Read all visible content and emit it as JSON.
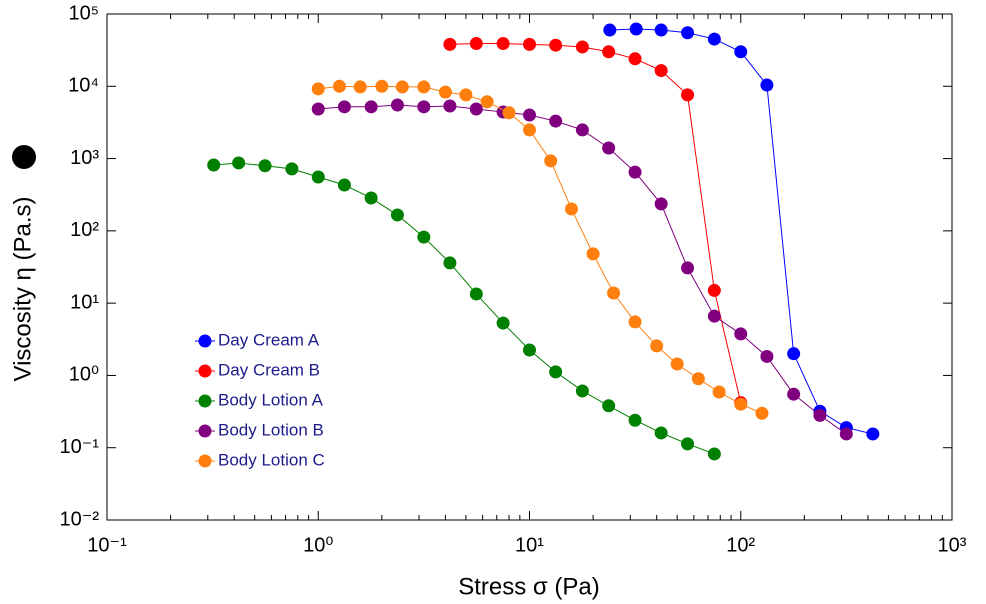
{
  "chart_data": {
    "type": "line",
    "x_label": "Stress σ (Pa)",
    "y_label": "Viscosity η (Pa.s)",
    "xscale": "log",
    "yscale": "log",
    "xlim": [
      0.1,
      1000
    ],
    "ylim": [
      0.01,
      100000
    ],
    "xticks": [
      {
        "value": 0.1,
        "label": "10⁻¹"
      },
      {
        "value": 1,
        "label": "10⁰"
      },
      {
        "value": 10,
        "label": "10¹"
      },
      {
        "value": 100,
        "label": "10²"
      },
      {
        "value": 1000,
        "label": "10³"
      }
    ],
    "yticks": [
      {
        "value": 0.01,
        "label": "10⁻²"
      },
      {
        "value": 0.1,
        "label": "10⁻¹"
      },
      {
        "value": 1,
        "label": "10⁰"
      },
      {
        "value": 10,
        "label": "10¹"
      },
      {
        "value": 100,
        "label": "10²"
      },
      {
        "value": 1000,
        "label": "10³"
      },
      {
        "value": 10000,
        "label": "10⁴"
      },
      {
        "value": 100000,
        "label": "10⁵"
      }
    ],
    "x_minor_ticks": true,
    "grid": false,
    "legend_loc": "center left",
    "series": [
      {
        "name": "Day Cream A",
        "color": "#0000ff",
        "x": [
          24,
          32,
          42,
          56,
          75,
          100,
          133,
          178,
          237,
          316,
          422
        ],
        "values": [
          60000,
          62000,
          60000,
          55000,
          45000,
          30000,
          10400,
          2.0,
          0.32,
          0.19,
          0.155
        ]
      },
      {
        "name": "Day Cream B",
        "color": "#ff0000",
        "x": [
          4.2,
          5.6,
          7.5,
          10,
          13.3,
          17.8,
          23.7,
          31.6,
          42,
          56,
          75,
          100
        ],
        "values": [
          38000,
          39000,
          39000,
          38000,
          37000,
          35000,
          30000,
          24000,
          16500,
          7600,
          15,
          0.42
        ]
      },
      {
        "name": "Body Lotion A",
        "color": "#008000",
        "x": [
          0.32,
          0.42,
          0.56,
          0.75,
          1,
          1.33,
          1.78,
          2.37,
          3.16,
          4.2,
          5.6,
          7.5,
          10,
          13.3,
          17.8,
          23.7,
          31.6,
          42,
          56,
          75
        ],
        "values": [
          815,
          870,
          795,
          720,
          556,
          431,
          285,
          166,
          82,
          36,
          13.4,
          5.3,
          2.25,
          1.12,
          0.61,
          0.38,
          0.24,
          0.16,
          0.113,
          0.082
        ]
      },
      {
        "name": "Body Lotion B",
        "color": "#800080",
        "x": [
          1,
          1.33,
          1.78,
          2.37,
          3.16,
          4.2,
          5.6,
          7.5,
          10,
          13.3,
          17.8,
          23.7,
          31.6,
          42,
          56,
          75,
          100,
          133,
          178,
          237,
          316
        ],
        "values": [
          4850,
          5200,
          5200,
          5500,
          5200,
          5340,
          4850,
          4400,
          4000,
          3300,
          2490,
          1400,
          650,
          236,
          30.7,
          6.6,
          3.75,
          1.83,
          0.55,
          0.28,
          0.155
        ]
      },
      {
        "name": "Body Lotion C",
        "color": "#ff7f0e",
        "x": [
          1,
          1.26,
          1.58,
          2,
          2.5,
          3.16,
          4,
          5,
          6.3,
          8,
          10,
          12.6,
          15.8,
          20,
          25,
          31.6,
          40,
          50,
          63,
          79,
          100,
          126
        ],
        "values": [
          9200,
          10000,
          9800,
          10000,
          9800,
          9800,
          8300,
          7600,
          6100,
          4300,
          2490,
          930,
          201,
          48,
          13.8,
          5.5,
          2.56,
          1.44,
          0.9,
          0.59,
          0.4,
          0.3
        ]
      }
    ]
  }
}
